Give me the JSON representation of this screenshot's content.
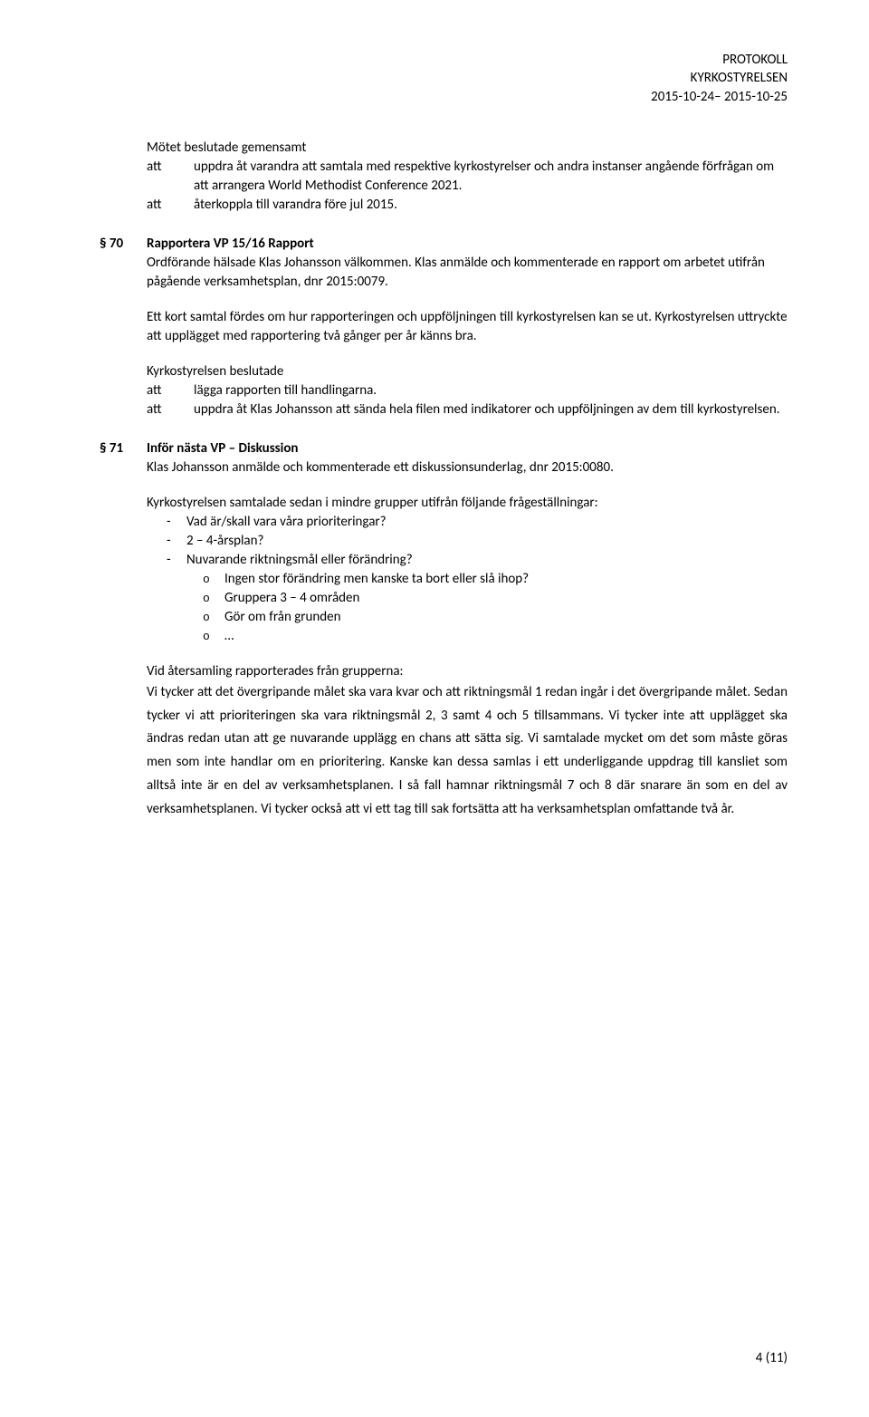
{
  "header": {
    "l1": "PROTOKOLL",
    "l2": "KYRKOSTYRELSEN",
    "l3": "2015-10-24– 2015-10-25"
  },
  "intro": {
    "title": "Mötet beslutade gemensamt",
    "rows": [
      {
        "k": "att",
        "v": "uppdra åt varandra att samtala med respektive kyrkostyrelser och andra instanser angående förfrågan om att arrangera World Methodist Conference 2021."
      },
      {
        "k": "att",
        "v": "återkoppla till varandra före jul 2015."
      }
    ]
  },
  "s70": {
    "num": "§ 70",
    "title": "Rapportera VP 15/16 Rapport",
    "p1": "Ordförande hälsade Klas Johansson välkommen. Klas anmälde och kommenterade en rapport om arbetet utifrån pågående verksamhetsplan, dnr 2015:0079.",
    "p2": "Ett kort samtal fördes om hur rapporteringen och uppföljningen till kyrkostyrelsen kan se ut. Kyrkostyrelsen uttryckte att upplägget med rapportering två gånger per år känns bra.",
    "decided": "Kyrkostyrelsen beslutade",
    "rows": [
      {
        "k": "att",
        "v": "lägga rapporten till handlingarna."
      },
      {
        "k": "att",
        "v": "uppdra åt Klas Johansson att sända hela filen med indikatorer och uppföljningen av dem till kyrkostyrelsen."
      }
    ]
  },
  "s71": {
    "num": "§ 71",
    "title": "Inför nästa VP – Diskussion",
    "p1": "Klas Johansson anmälde och kommenterade ett diskussionsunderlag, dnr 2015:0080.",
    "lead": "Kyrkostyrelsen samtalade sedan i mindre grupper utifrån följande frågeställningar:",
    "bullets": [
      "Vad är/skall vara våra prioriteringar?",
      "2 – 4-årsplan?",
      "Nuvarande riktningsmål eller förändring?"
    ],
    "subs": [
      "Ingen stor förändring men kanske ta bort eller slå ihop?",
      "Gruppera 3 – 4 områden",
      "Gör om från grunden",
      "…"
    ],
    "regroup_lead": "Vid återsamling rapporterades från grupperna:",
    "regroup_body": "Vi tycker att det övergripande målet ska vara kvar och att riktningsmål 1 redan ingår i det övergripande målet. Sedan tycker vi att prioriteringen ska vara riktningsmål 2, 3 samt 4 och 5 tillsammans. Vi tycker inte att upplägget ska ändras redan utan att ge nuvarande upplägg en chans att sätta sig. Vi samtalade mycket om det som måste göras men som inte handlar om en prioritering. Kanske kan dessa samlas i ett underliggande uppdrag till kansliet som alltså inte är en del av verksamhetsplanen. I så fall hamnar riktningsmål 7 och 8 där snarare än som en del av verksamhetsplanen. Vi tycker också att vi ett tag till sak fortsätta att ha verksamhetsplan omfattande två år."
  },
  "footer": {
    "page": "4 (11)"
  }
}
